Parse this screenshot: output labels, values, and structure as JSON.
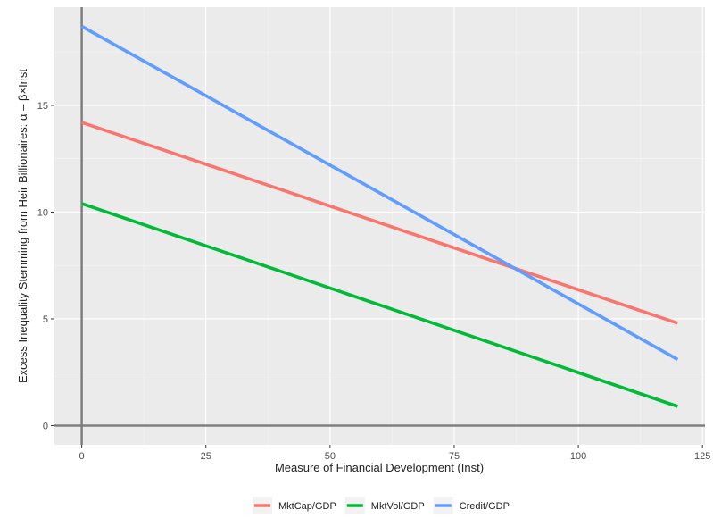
{
  "chart_data": {
    "type": "line",
    "xlabel": "Measure of Financial Development (Inst)",
    "ylabel": "Excess Inequality Stemming from Heir Billionaires: α – β×Inst",
    "xlim": [
      -5.5,
      125.5
    ],
    "ylim": [
      -0.9,
      19.6
    ],
    "x_ticks": [
      0,
      25,
      50,
      75,
      100,
      125
    ],
    "y_ticks": [
      0,
      5,
      10,
      15
    ],
    "x_tick_labels": [
      "0",
      "25",
      "50",
      "75",
      "100",
      "125"
    ],
    "y_tick_labels": [
      "0",
      "5",
      "10",
      "15"
    ],
    "grid": true,
    "reference_lines": {
      "x": 0,
      "y": 0
    },
    "legend_position": "bottom",
    "series": [
      {
        "name": "MktCap/GDP",
        "color": "#F8766D",
        "x": [
          0,
          120
        ],
        "y": [
          14.2,
          4.8
        ]
      },
      {
        "name": "MktVol/GDP",
        "color": "#00BA38",
        "x": [
          0,
          120
        ],
        "y": [
          10.4,
          0.9
        ]
      },
      {
        "name": "Credit/GDP",
        "color": "#619CFF",
        "x": [
          0,
          120
        ],
        "y": [
          18.7,
          3.1
        ]
      }
    ]
  }
}
